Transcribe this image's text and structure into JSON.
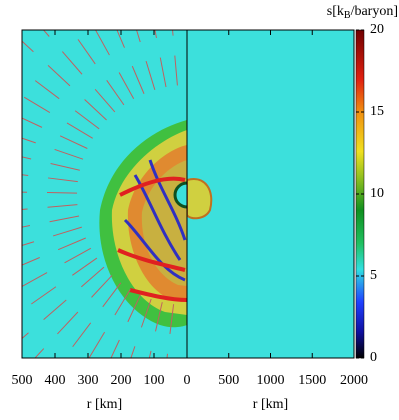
{
  "chart_data": {
    "type": "heatmap",
    "colorbar": {
      "label_parts": [
        "s[k",
        "B",
        "/baryon]"
      ],
      "lim": [
        0,
        20
      ],
      "ticks": [
        0,
        5,
        10,
        15,
        20
      ]
    },
    "panels": [
      {
        "xlim": [
          500,
          0
        ],
        "xticks": [
          500,
          400,
          300,
          200,
          100,
          0
        ],
        "xlabel": "r [km]"
      },
      {
        "xlim": [
          0,
          2000
        ],
        "xticks": [
          500,
          1000,
          1500,
          2000
        ],
        "xlabel": "r [km]"
      }
    ]
  }
}
